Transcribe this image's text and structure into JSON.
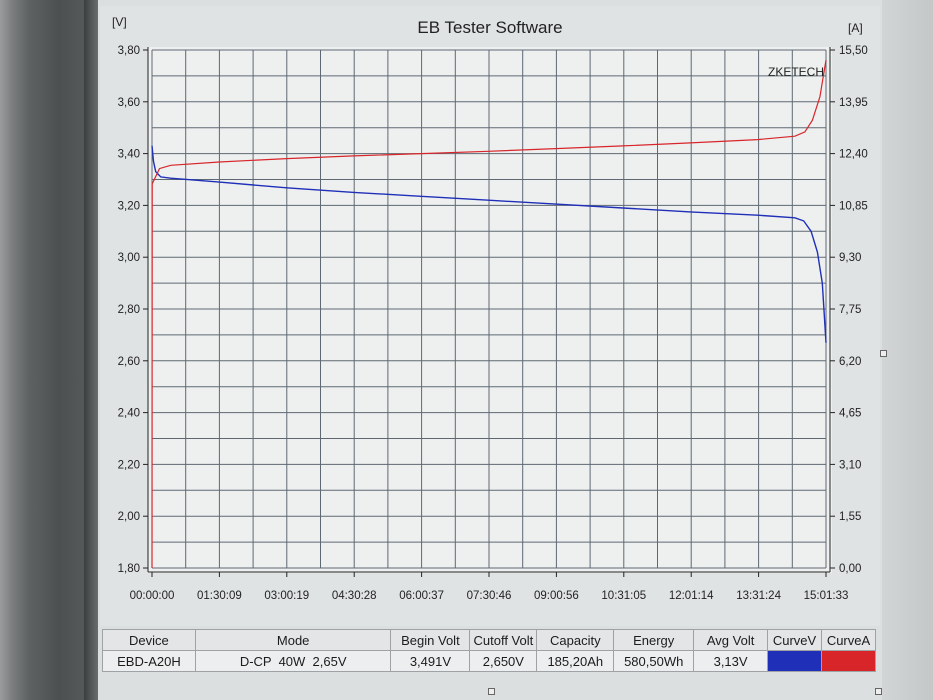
{
  "window": {
    "title": "EB Tester Software"
  },
  "chart_data": {
    "type": "line",
    "title": "EB Tester Software",
    "watermark": "ZKETECH",
    "x_tick_labels": [
      "00:00:00",
      "01:30:09",
      "03:00:19",
      "04:30:28",
      "06:00:37",
      "07:30:46",
      "09:00:56",
      "10:31:05",
      "12:01:14",
      "13:31:24",
      "15:01:33"
    ],
    "x_range_seconds": [
      0,
      54093
    ],
    "y_left": {
      "unit": "[V]",
      "range": [
        1.8,
        3.8
      ],
      "tick_labels": [
        "3,80",
        "3,60",
        "3,40",
        "3,20",
        "3,00",
        "2,80",
        "2,60",
        "2,40",
        "2,20",
        "2,00",
        "1,80"
      ]
    },
    "y_right": {
      "unit": "[A]",
      "range": [
        0.0,
        15.5
      ],
      "tick_labels": [
        "15,50",
        "13,95",
        "12,40",
        "10,85",
        "9,30",
        "7,75",
        "6,20",
        "4,65",
        "3,10",
        "1,55",
        "0,00"
      ]
    },
    "grid": true,
    "series": [
      {
        "name": "CurveV",
        "axis": "left",
        "color": "#1f2fb8",
        "points": [
          [
            0,
            3.43
          ],
          [
            120,
            3.37
          ],
          [
            300,
            3.33
          ],
          [
            700,
            3.31
          ],
          [
            1500,
            3.305
          ],
          [
            5400,
            3.29
          ],
          [
            10800,
            3.268
          ],
          [
            16200,
            3.25
          ],
          [
            21600,
            3.235
          ],
          [
            27000,
            3.22
          ],
          [
            32400,
            3.205
          ],
          [
            37800,
            3.19
          ],
          [
            43200,
            3.175
          ],
          [
            48600,
            3.162
          ],
          [
            51600,
            3.152
          ],
          [
            52300,
            3.14
          ],
          [
            52900,
            3.1
          ],
          [
            53400,
            3.02
          ],
          [
            53800,
            2.9
          ],
          [
            54093,
            2.67
          ]
        ]
      },
      {
        "name": "CurveA",
        "axis": "right",
        "color": "#d8252a",
        "points": [
          [
            0,
            0.0
          ],
          [
            20,
            11.5
          ],
          [
            150,
            11.6
          ],
          [
            600,
            11.95
          ],
          [
            1500,
            12.05
          ],
          [
            5400,
            12.15
          ],
          [
            10800,
            12.25
          ],
          [
            16200,
            12.33
          ],
          [
            21600,
            12.4
          ],
          [
            27000,
            12.47
          ],
          [
            32400,
            12.55
          ],
          [
            37800,
            12.63
          ],
          [
            43200,
            12.72
          ],
          [
            48600,
            12.82
          ],
          [
            51600,
            12.92
          ],
          [
            52400,
            13.05
          ],
          [
            53000,
            13.4
          ],
          [
            53600,
            14.1
          ],
          [
            54093,
            15.2
          ]
        ]
      }
    ]
  },
  "table": {
    "headers": [
      "Device",
      "Mode",
      "Begin Volt",
      "Cutoff Volt",
      "Capacity",
      "Energy",
      "Avg Volt",
      "CurveV",
      "CurveA"
    ],
    "values": [
      "EBD-A20H",
      "D-CP  40W  2,65V",
      "3,491V",
      "2,650V",
      "185,20Ah",
      "580,50Wh",
      "3,13V"
    ],
    "curve_colors": {
      "CurveV": "#1f2fb8",
      "CurveA": "#d8252a"
    }
  }
}
